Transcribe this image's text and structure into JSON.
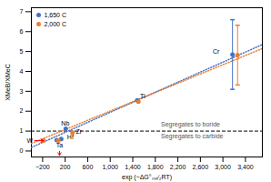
{
  "chart_data": {
    "type": "scatter",
    "title": "",
    "xlabel": "exp (−ΔG°ₘₙ∕₂RT)",
    "ylabel": "XMeB/XMeC",
    "xlim": [
      -400,
      3700
    ],
    "ylim": [
      -0.3,
      7.2
    ],
    "xticks": [
      {
        "value": -200,
        "label": "−200"
      },
      200,
      600,
      {
        "value": 1000,
        "label": "1,000"
      },
      {
        "value": 1400,
        "label": "1,400"
      },
      {
        "value": 1800,
        "label": "1,800"
      },
      {
        "value": 2200,
        "label": "2,200"
      },
      {
        "value": 2600,
        "label": "2,600"
      },
      {
        "value": 3000,
        "label": "3,000"
      },
      {
        "value": 3400,
        "label": "3,400"
      }
    ],
    "yticks": [
      0,
      1,
      2,
      3,
      4,
      5,
      6,
      7
    ],
    "grid": false,
    "legend": "upper left",
    "hlines": [
      {
        "y": 1.0,
        "color": "black",
        "line_style": "dashed"
      }
    ],
    "series": [
      {
        "name": "1,650 C",
        "color": "#4472C4",
        "x": [
          50,
          130,
          210,
          1480,
          3170
        ],
        "values": [
          0.55,
          0.6,
          1.12,
          2.55,
          4.85
        ],
        "errors": [
          null,
          null,
          null,
          null,
          1.75
        ],
        "trendline": {
          "x": [
            -400,
            3700
          ],
          "y": [
            0.18,
            5.35
          ],
          "line_style": "dotted"
        }
      },
      {
        "name": "2,000 C",
        "color": "#ED7D31",
        "x": [
          -185,
          80,
          330,
          1500,
          3260
        ],
        "values": [
          0.52,
          0.52,
          0.92,
          2.48,
          4.82
        ],
        "errors": [
          null,
          null,
          null,
          null,
          1.5
        ],
        "trendline": {
          "x": [
            -400,
            3700
          ],
          "y": [
            0.38,
            5.15
          ],
          "line_style": "dotted"
        }
      }
    ],
    "annotations": [
      {
        "text": "Hf",
        "x": 235,
        "y": 0.6
      },
      {
        "text": "Nb",
        "x": 130,
        "y": 1.3
      },
      {
        "text": "Ti",
        "x": 1530,
        "y": 2.65
      },
      {
        "text": "Cr",
        "x": 2820,
        "y": 4.9
      },
      {
        "text": "Zr",
        "x": 390,
        "y": 0.87
      },
      {
        "text": "W",
        "x": -375,
        "y": 0.52,
        "arrow": {
          "x": -185,
          "y": 0.52,
          "color": "red"
        }
      },
      {
        "text": "Ta",
        "x": 100,
        "y": 0.4,
        "arrow": {
          "x": 100,
          "y": -0.22,
          "color": "red"
        }
      },
      {
        "text": "Segregates to boride",
        "x": 1900,
        "y": 1.22,
        "color": "#555555"
      },
      {
        "text": "Segregates to carbide",
        "x": 1900,
        "y": 0.65,
        "color": "#555555"
      }
    ]
  }
}
